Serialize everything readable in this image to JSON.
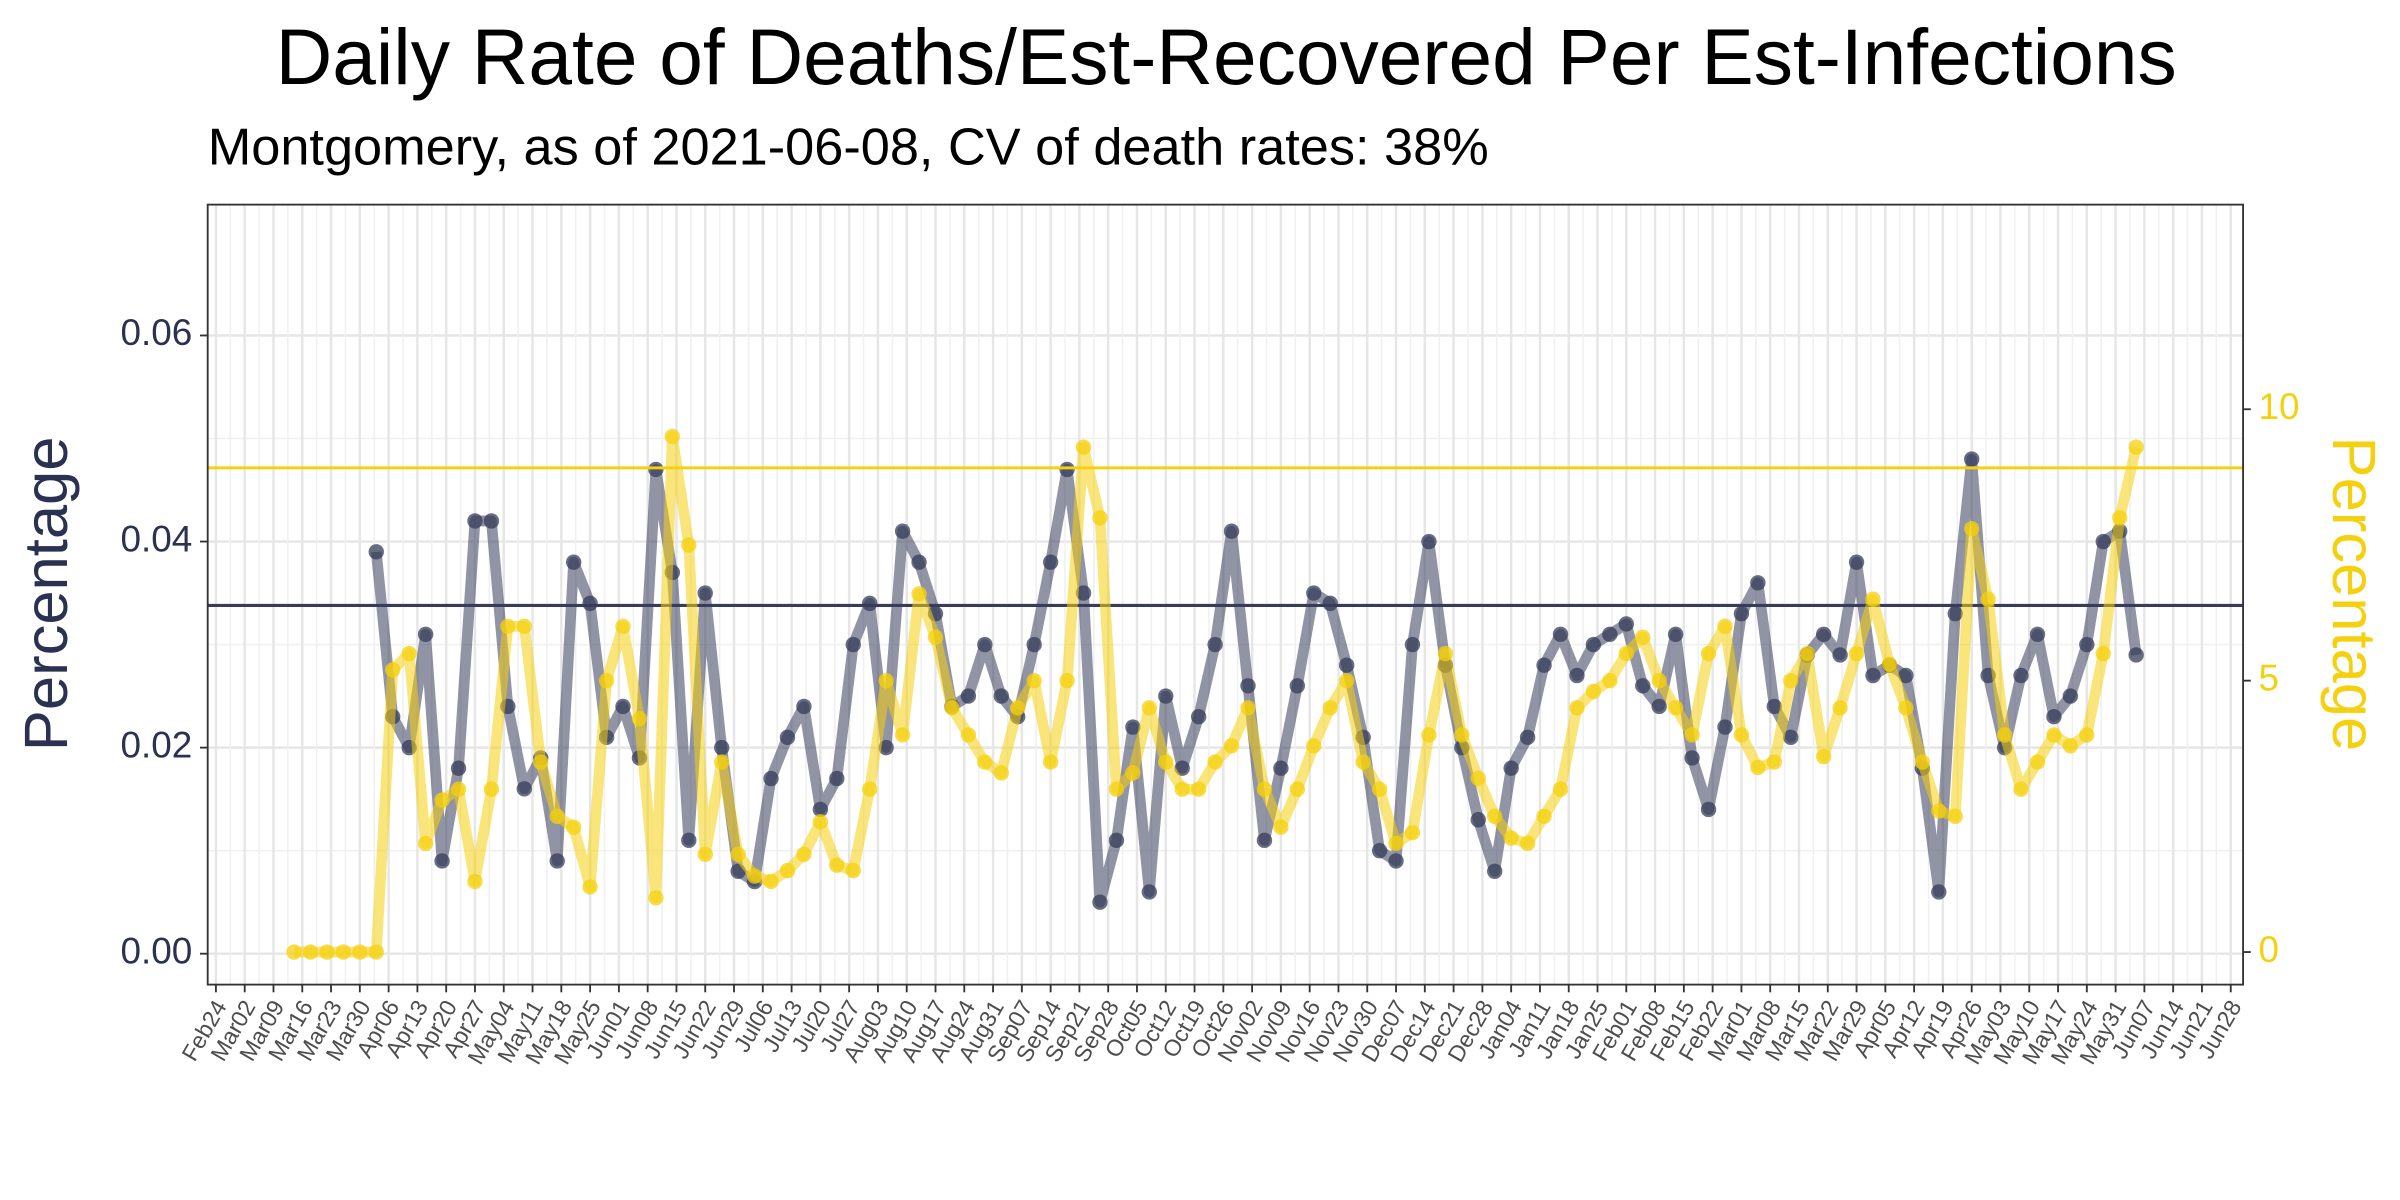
{
  "chart_data": {
    "type": "line",
    "title": "Daily Rate of Deaths/Est-Recovered Per Est-Infections",
    "subtitle": "Montgomery, as of 2021-06-08, CV of death rates: 38%",
    "y_label": "Percentage",
    "y2_label": "Percentage",
    "grid": true,
    "xlim": [
      "2020-02-22",
      "2021-07-01"
    ],
    "ylim": [
      -0.003,
      0.0727
    ],
    "yticks": [
      {
        "value": 0,
        "label": "0.00"
      },
      {
        "value": 0.02,
        "label": "0.02"
      },
      {
        "value": 0.04,
        "label": "0.04"
      },
      {
        "value": 0.06,
        "label": "0.06"
      }
    ],
    "y2lim": [
      -0.6,
      13.77
    ],
    "y2ticks": [
      0,
      5,
      10
    ],
    "xticks": [
      {
        "value": "2020-02-24",
        "label": "Feb24"
      },
      {
        "value": "2020-03-02",
        "label": "Mar02"
      },
      {
        "value": "2020-03-09",
        "label": "Mar09"
      },
      {
        "value": "2020-03-16",
        "label": "Mar16"
      },
      {
        "value": "2020-03-23",
        "label": "Mar23"
      },
      {
        "value": "2020-03-30",
        "label": "Mar30"
      },
      {
        "value": "2020-04-06",
        "label": "Apr06"
      },
      {
        "value": "2020-04-13",
        "label": "Apr13"
      },
      {
        "value": "2020-04-20",
        "label": "Apr20"
      },
      {
        "value": "2020-04-27",
        "label": "Apr27"
      },
      {
        "value": "2020-05-04",
        "label": "May04"
      },
      {
        "value": "2020-05-11",
        "label": "May11"
      },
      {
        "value": "2020-05-18",
        "label": "May18"
      },
      {
        "value": "2020-05-25",
        "label": "May25"
      },
      {
        "value": "2020-06-01",
        "label": "Jun01"
      },
      {
        "value": "2020-06-08",
        "label": "Jun08"
      },
      {
        "value": "2020-06-15",
        "label": "Jun15"
      },
      {
        "value": "2020-06-22",
        "label": "Jun22"
      },
      {
        "value": "2020-06-29",
        "label": "Jun29"
      },
      {
        "value": "2020-07-06",
        "label": "Jul06"
      },
      {
        "value": "2020-07-13",
        "label": "Jul13"
      },
      {
        "value": "2020-07-20",
        "label": "Jul20"
      },
      {
        "value": "2020-07-27",
        "label": "Jul27"
      },
      {
        "value": "2020-08-03",
        "label": "Aug03"
      },
      {
        "value": "2020-08-10",
        "label": "Aug10"
      },
      {
        "value": "2020-08-17",
        "label": "Aug17"
      },
      {
        "value": "2020-08-24",
        "label": "Aug24"
      },
      {
        "value": "2020-08-31",
        "label": "Aug31"
      },
      {
        "value": "2020-09-07",
        "label": "Sep07"
      },
      {
        "value": "2020-09-14",
        "label": "Sep14"
      },
      {
        "value": "2020-09-21",
        "label": "Sep21"
      },
      {
        "value": "2020-09-28",
        "label": "Sep28"
      },
      {
        "value": "2020-10-05",
        "label": "Oct05"
      },
      {
        "value": "2020-10-12",
        "label": "Oct12"
      },
      {
        "value": "2020-10-19",
        "label": "Oct19"
      },
      {
        "value": "2020-10-26",
        "label": "Oct26"
      },
      {
        "value": "2020-11-02",
        "label": "Nov02"
      },
      {
        "value": "2020-11-09",
        "label": "Nov09"
      },
      {
        "value": "2020-11-16",
        "label": "Nov16"
      },
      {
        "value": "2020-11-23",
        "label": "Nov23"
      },
      {
        "value": "2020-11-30",
        "label": "Nov30"
      },
      {
        "value": "2020-12-07",
        "label": "Dec07"
      },
      {
        "value": "2020-12-14",
        "label": "Dec14"
      },
      {
        "value": "2020-12-21",
        "label": "Dec21"
      },
      {
        "value": "2020-12-28",
        "label": "Dec28"
      },
      {
        "value": "2021-01-04",
        "label": "Jan04"
      },
      {
        "value": "2021-01-11",
        "label": "Jan11"
      },
      {
        "value": "2021-01-18",
        "label": "Jan18"
      },
      {
        "value": "2021-01-25",
        "label": "Jan25"
      },
      {
        "value": "2021-02-01",
        "label": "Feb01"
      },
      {
        "value": "2021-02-08",
        "label": "Feb08"
      },
      {
        "value": "2021-02-15",
        "label": "Feb15"
      },
      {
        "value": "2021-02-22",
        "label": "Feb22"
      },
      {
        "value": "2021-03-01",
        "label": "Mar01"
      },
      {
        "value": "2021-03-08",
        "label": "Mar08"
      },
      {
        "value": "2021-03-15",
        "label": "Mar15"
      },
      {
        "value": "2021-03-22",
        "label": "Mar22"
      },
      {
        "value": "2021-03-29",
        "label": "Mar29"
      },
      {
        "value": "2021-04-05",
        "label": "Apr05"
      },
      {
        "value": "2021-04-12",
        "label": "Apr12"
      },
      {
        "value": "2021-04-19",
        "label": "Apr19"
      },
      {
        "value": "2021-04-26",
        "label": "Apr26"
      },
      {
        "value": "2021-05-03",
        "label": "May03"
      },
      {
        "value": "2021-05-10",
        "label": "May10"
      },
      {
        "value": "2021-05-17",
        "label": "May17"
      },
      {
        "value": "2021-05-24",
        "label": "May24"
      },
      {
        "value": "2021-05-31",
        "label": "May31"
      },
      {
        "value": "2021-06-07",
        "label": "Jun07"
      },
      {
        "value": "2021-06-14",
        "label": "Jun14"
      },
      {
        "value": "2021-06-21",
        "label": "Jun21"
      },
      {
        "value": "2021-06-28",
        "label": "Jun28"
      }
    ],
    "x": [
      "2020-03-14",
      "2020-03-18",
      "2020-03-22",
      "2020-03-26",
      "2020-03-30",
      "2020-04-03",
      "2020-04-07",
      "2020-04-11",
      "2020-04-15",
      "2020-04-19",
      "2020-04-23",
      "2020-04-27",
      "2020-05-01",
      "2020-05-05",
      "2020-05-09",
      "2020-05-13",
      "2020-05-17",
      "2020-05-21",
      "2020-05-25",
      "2020-05-29",
      "2020-06-02",
      "2020-06-06",
      "2020-06-10",
      "2020-06-14",
      "2020-06-18",
      "2020-06-22",
      "2020-06-26",
      "2020-06-30",
      "2020-07-04",
      "2020-07-08",
      "2020-07-12",
      "2020-07-16",
      "2020-07-20",
      "2020-07-24",
      "2020-07-28",
      "2020-08-01",
      "2020-08-05",
      "2020-08-09",
      "2020-08-13",
      "2020-08-17",
      "2020-08-21",
      "2020-08-25",
      "2020-08-29",
      "2020-09-02",
      "2020-09-06",
      "2020-09-10",
      "2020-09-14",
      "2020-09-18",
      "2020-09-22",
      "2020-09-26",
      "2020-09-30",
      "2020-10-04",
      "2020-10-08",
      "2020-10-12",
      "2020-10-16",
      "2020-10-20",
      "2020-10-24",
      "2020-10-28",
      "2020-11-01",
      "2020-11-05",
      "2020-11-09",
      "2020-11-13",
      "2020-11-17",
      "2020-11-21",
      "2020-11-25",
      "2020-11-29",
      "2020-12-03",
      "2020-12-07",
      "2020-12-11",
      "2020-12-15",
      "2020-12-19",
      "2020-12-23",
      "2020-12-27",
      "2020-12-31",
      "2021-01-04",
      "2021-01-08",
      "2021-01-12",
      "2021-01-16",
      "2021-01-20",
      "2021-01-24",
      "2021-01-28",
      "2021-02-01",
      "2021-02-05",
      "2021-02-09",
      "2021-02-13",
      "2021-02-17",
      "2021-02-21",
      "2021-02-25",
      "2021-03-01",
      "2021-03-05",
      "2021-03-09",
      "2021-03-13",
      "2021-03-17",
      "2021-03-21",
      "2021-03-25",
      "2021-03-29",
      "2021-04-02",
      "2021-04-06",
      "2021-04-10",
      "2021-04-14",
      "2021-04-18",
      "2021-04-22",
      "2021-04-26",
      "2021-04-30",
      "2021-05-04",
      "2021-05-08",
      "2021-05-12",
      "2021-05-16",
      "2021-05-20",
      "2021-05-24",
      "2021-05-28",
      "2021-06-01",
      "2021-06-05"
    ],
    "series": [
      {
        "color": "#363c5a",
        "hline": 0.0338,
        "values": [
          null,
          null,
          null,
          null,
          null,
          0.039,
          0.023,
          0.02,
          0.031,
          0.009,
          0.018,
          0.042,
          0.042,
          0.024,
          0.016,
          0.019,
          0.009,
          0.038,
          0.034,
          0.021,
          0.024,
          0.019,
          0.047,
          0.037,
          0.011,
          0.035,
          0.02,
          0.008,
          0.007,
          0.017,
          0.021,
          0.024,
          0.014,
          0.017,
          0.03,
          0.034,
          0.02,
          0.041,
          0.038,
          0.033,
          0.024,
          0.025,
          0.03,
          0.025,
          0.023,
          0.03,
          0.038,
          0.047,
          0.035,
          0.005,
          0.011,
          0.022,
          0.006,
          0.025,
          0.018,
          0.023,
          0.03,
          0.041,
          0.026,
          0.011,
          0.018,
          0.026,
          0.035,
          0.034,
          0.028,
          0.021,
          0.01,
          0.009,
          0.03,
          0.04,
          0.028,
          0.02,
          0.013,
          0.008,
          0.018,
          0.021,
          0.028,
          0.031,
          0.027,
          0.03,
          0.031,
          0.032,
          0.026,
          0.024,
          0.031,
          0.019,
          0.014,
          0.022,
          0.033,
          0.036,
          0.024,
          0.021,
          0.029,
          0.031,
          0.029,
          0.038,
          0.027,
          0.028,
          0.027,
          0.018,
          0.006,
          0.033,
          0.048,
          0.027,
          0.02,
          0.027,
          0.031,
          0.023,
          0.025,
          0.03,
          0.04,
          0.041,
          0.029
        ]
      },
      {
        "color": "#f5d00f",
        "axis": "y2",
        "hline": 8.92,
        "values": [
          0,
          0,
          0,
          0,
          0,
          0,
          5.2,
          5.5,
          2.0,
          2.8,
          3.0,
          1.3,
          3.0,
          6.0,
          6.0,
          3.5,
          2.5,
          2.3,
          1.2,
          5.0,
          6.0,
          4.3,
          1.0,
          9.5,
          7.5,
          1.8,
          3.5,
          1.8,
          1.4,
          1.3,
          1.5,
          1.8,
          2.4,
          1.6,
          1.5,
          3.0,
          5.0,
          4.0,
          6.6,
          5.8,
          4.5,
          4.0,
          3.5,
          3.3,
          4.5,
          5.0,
          3.5,
          5.0,
          9.3,
          8.0,
          3.0,
          3.3,
          4.5,
          3.5,
          3.0,
          3.0,
          3.5,
          3.8,
          4.5,
          3.0,
          2.3,
          3.0,
          3.8,
          4.5,
          5.0,
          3.5,
          3.0,
          2.0,
          2.2,
          4.0,
          5.5,
          4.0,
          3.2,
          2.5,
          2.1,
          2.0,
          2.5,
          3.0,
          4.5,
          4.8,
          5.0,
          5.5,
          5.8,
          5.0,
          4.5,
          4.0,
          5.5,
          6.0,
          4.0,
          3.4,
          3.5,
          5.0,
          5.5,
          3.6,
          4.5,
          5.5,
          6.5,
          5.3,
          4.5,
          3.5,
          2.6,
          2.5,
          7.8,
          6.5,
          4.0,
          3.0,
          3.5,
          4.0,
          3.8,
          4.0,
          5.5,
          8.0,
          9.3
        ]
      }
    ]
  }
}
